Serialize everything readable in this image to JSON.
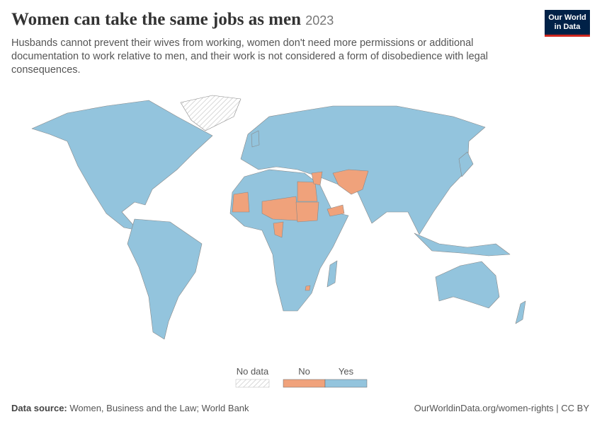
{
  "header": {
    "title": "Women can take the same jobs as men",
    "year": "2023",
    "subtitle": "Husbands cannot prevent their wives from working, women don't need more permissions or additional documentation to work relative to men, and their work is not considered a form of disobedience with legal consequences."
  },
  "logo": {
    "line1": "Our World",
    "line2": "in Data"
  },
  "legend": {
    "items": [
      {
        "label": "No data",
        "color": "#ffffff"
      },
      {
        "label": "No",
        "color": "#f0a27b"
      },
      {
        "label": "Yes",
        "color": "#93c4dd"
      }
    ]
  },
  "footer": {
    "source_label": "Data source:",
    "source": "Women, Business and the Law; World Bank",
    "url": "OurWorldinData.org/women-rights | CC BY"
  }
}
